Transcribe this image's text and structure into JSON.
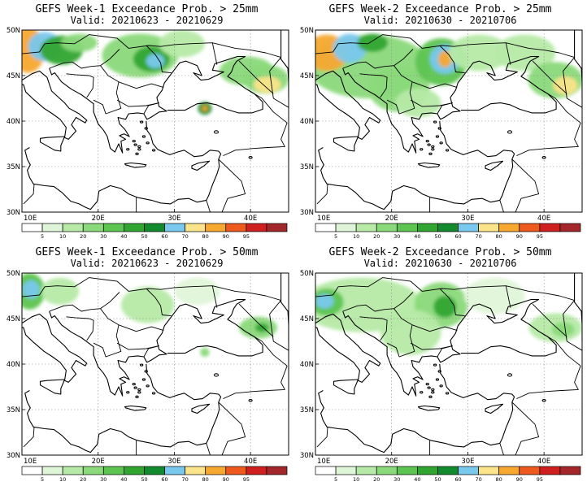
{
  "panels": [
    {
      "title": "GEFS Week-1 Exceedance Prob. > 25mm",
      "valid": "Valid: 20210623 - 20210629",
      "blobs": [
        {
          "lon": 10.8,
          "lat": 47.8,
          "rx": 2.2,
          "ry": 2.5,
          "level": 9
        },
        {
          "lon": 13.0,
          "lat": 48.2,
          "rx": 2.2,
          "ry": 1.6,
          "level": 7
        },
        {
          "lon": 15.2,
          "lat": 47.8,
          "rx": 2.8,
          "ry": 1.6,
          "level": 5
        },
        {
          "lon": 17.5,
          "lat": 48.6,
          "rx": 2.4,
          "ry": 1.0,
          "level": 3
        },
        {
          "lon": 25.5,
          "lat": 47.2,
          "rx": 5.0,
          "ry": 2.4,
          "level": 3
        },
        {
          "lon": 27.0,
          "lat": 46.8,
          "rx": 2.4,
          "ry": 1.4,
          "level": 5
        },
        {
          "lon": 27.5,
          "lat": 46.6,
          "rx": 1.2,
          "ry": 0.8,
          "level": 7
        },
        {
          "lon": 31.0,
          "lat": 48.5,
          "rx": 3.0,
          "ry": 1.5,
          "level": 2
        },
        {
          "lon": 39.5,
          "lat": 45.5,
          "rx": 3.6,
          "ry": 1.6,
          "level": 3
        },
        {
          "lon": 42.0,
          "lat": 44.6,
          "rx": 3.0,
          "ry": 1.6,
          "level": 3
        },
        {
          "lon": 42.2,
          "lat": 44.0,
          "rx": 1.8,
          "ry": 0.9,
          "level": 8
        },
        {
          "lon": 34.0,
          "lat": 41.4,
          "rx": 0.9,
          "ry": 0.7,
          "level": 6
        },
        {
          "lon": 34.0,
          "lat": 41.4,
          "rx": 0.4,
          "ry": 0.3,
          "level": 9
        }
      ]
    },
    {
      "title": "GEFS Week-2 Exceedance Prob. > 25mm",
      "valid": "Valid: 20210630 - 20210706",
      "blobs": [
        {
          "lon": 17.0,
          "lat": 46.0,
          "rx": 8.0,
          "ry": 3.5,
          "level": 3
        },
        {
          "lon": 21.0,
          "lat": 43.5,
          "rx": 4.0,
          "ry": 2.5,
          "level": 3
        },
        {
          "lon": 11.5,
          "lat": 47.5,
          "rx": 2.8,
          "ry": 2.0,
          "level": 9
        },
        {
          "lon": 14.5,
          "lat": 48.0,
          "rx": 2.2,
          "ry": 1.6,
          "level": 7
        },
        {
          "lon": 17.5,
          "lat": 48.6,
          "rx": 2.0,
          "ry": 1.0,
          "level": 5
        },
        {
          "lon": 26.5,
          "lat": 46.5,
          "rx": 3.4,
          "ry": 2.6,
          "level": 4
        },
        {
          "lon": 27.0,
          "lat": 46.8,
          "rx": 2.0,
          "ry": 1.6,
          "level": 7
        },
        {
          "lon": 27.0,
          "lat": 46.8,
          "rx": 0.9,
          "ry": 0.9,
          "level": 9
        },
        {
          "lon": 31.5,
          "lat": 47.5,
          "rx": 4.0,
          "ry": 2.0,
          "level": 2
        },
        {
          "lon": 37.5,
          "lat": 47.5,
          "rx": 4.0,
          "ry": 2.0,
          "level": 2
        },
        {
          "lon": 41.5,
          "lat": 44.5,
          "rx": 3.6,
          "ry": 2.0,
          "level": 3
        },
        {
          "lon": 42.8,
          "lat": 43.9,
          "rx": 1.6,
          "ry": 1.0,
          "level": 8
        },
        {
          "lon": 23.5,
          "lat": 42.0,
          "rx": 3.0,
          "ry": 1.6,
          "level": 2
        }
      ]
    },
    {
      "title": "GEFS Week-1 Exceedance Prob. > 50mm",
      "valid": "Valid: 20210623 - 20210629",
      "blobs": [
        {
          "lon": 11.0,
          "lat": 48.0,
          "rx": 2.0,
          "ry": 2.0,
          "level": 4
        },
        {
          "lon": 11.2,
          "lat": 48.2,
          "rx": 1.1,
          "ry": 1.0,
          "level": 7
        },
        {
          "lon": 15.0,
          "lat": 48.0,
          "rx": 2.5,
          "ry": 1.5,
          "level": 2
        },
        {
          "lon": 26.5,
          "lat": 46.5,
          "rx": 3.5,
          "ry": 2.0,
          "level": 2
        },
        {
          "lon": 33.0,
          "lat": 48.0,
          "rx": 3.0,
          "ry": 1.5,
          "level": 1
        },
        {
          "lon": 41.0,
          "lat": 44.0,
          "rx": 2.5,
          "ry": 1.2,
          "level": 3
        },
        {
          "lon": 41.5,
          "lat": 44.0,
          "rx": 0.9,
          "ry": 0.5,
          "level": 5
        },
        {
          "lon": 34.0,
          "lat": 41.3,
          "rx": 0.6,
          "ry": 0.5,
          "level": 3
        }
      ]
    },
    {
      "title": "GEFS Week-2 Exceedance Prob. > 50mm",
      "valid": "Valid: 20210630 - 20210706",
      "blobs": [
        {
          "lon": 16.0,
          "lat": 46.5,
          "rx": 8.0,
          "ry": 3.0,
          "level": 2
        },
        {
          "lon": 11.5,
          "lat": 46.8,
          "rx": 2.2,
          "ry": 1.5,
          "level": 4
        },
        {
          "lon": 11.2,
          "lat": 46.9,
          "rx": 1.2,
          "ry": 0.8,
          "level": 7
        },
        {
          "lon": 26.5,
          "lat": 46.5,
          "rx": 3.5,
          "ry": 2.5,
          "level": 3
        },
        {
          "lon": 27.0,
          "lat": 46.3,
          "rx": 1.5,
          "ry": 1.2,
          "level": 5
        },
        {
          "lon": 22.5,
          "lat": 43.5,
          "rx": 4.0,
          "ry": 2.5,
          "level": 2
        },
        {
          "lon": 33.5,
          "lat": 47.5,
          "rx": 4.0,
          "ry": 2.0,
          "level": 1
        },
        {
          "lon": 41.5,
          "lat": 44.0,
          "rx": 3.5,
          "ry": 1.6,
          "level": 2
        },
        {
          "lon": 42.5,
          "lat": 43.8,
          "rx": 1.5,
          "ry": 0.8,
          "level": 3
        }
      ]
    }
  ],
  "map": {
    "lon_range": [
      10,
      45
    ],
    "lat_range": [
      30,
      50
    ],
    "x_ticks": [
      "10E",
      "20E",
      "30E",
      "40E"
    ],
    "y_ticks": [
      "30N",
      "35N",
      "40N",
      "45N",
      "50N"
    ],
    "x_tick_values": [
      10,
      20,
      30,
      40
    ],
    "y_tick_values": [
      30,
      35,
      40,
      45,
      50
    ]
  },
  "colorbar": {
    "labels": [
      "5",
      "10",
      "20",
      "30",
      "40",
      "50",
      "60",
      "70",
      "80",
      "90",
      "95"
    ],
    "colors": [
      "#ffffff",
      "#dff5d8",
      "#b6eaa6",
      "#8ad97a",
      "#5cc450",
      "#30a530",
      "#128a2e",
      "#79c8ee",
      "#fbe48a",
      "#f7a830",
      "#ee5a1e",
      "#cf1f1f",
      "#a3262b"
    ]
  }
}
